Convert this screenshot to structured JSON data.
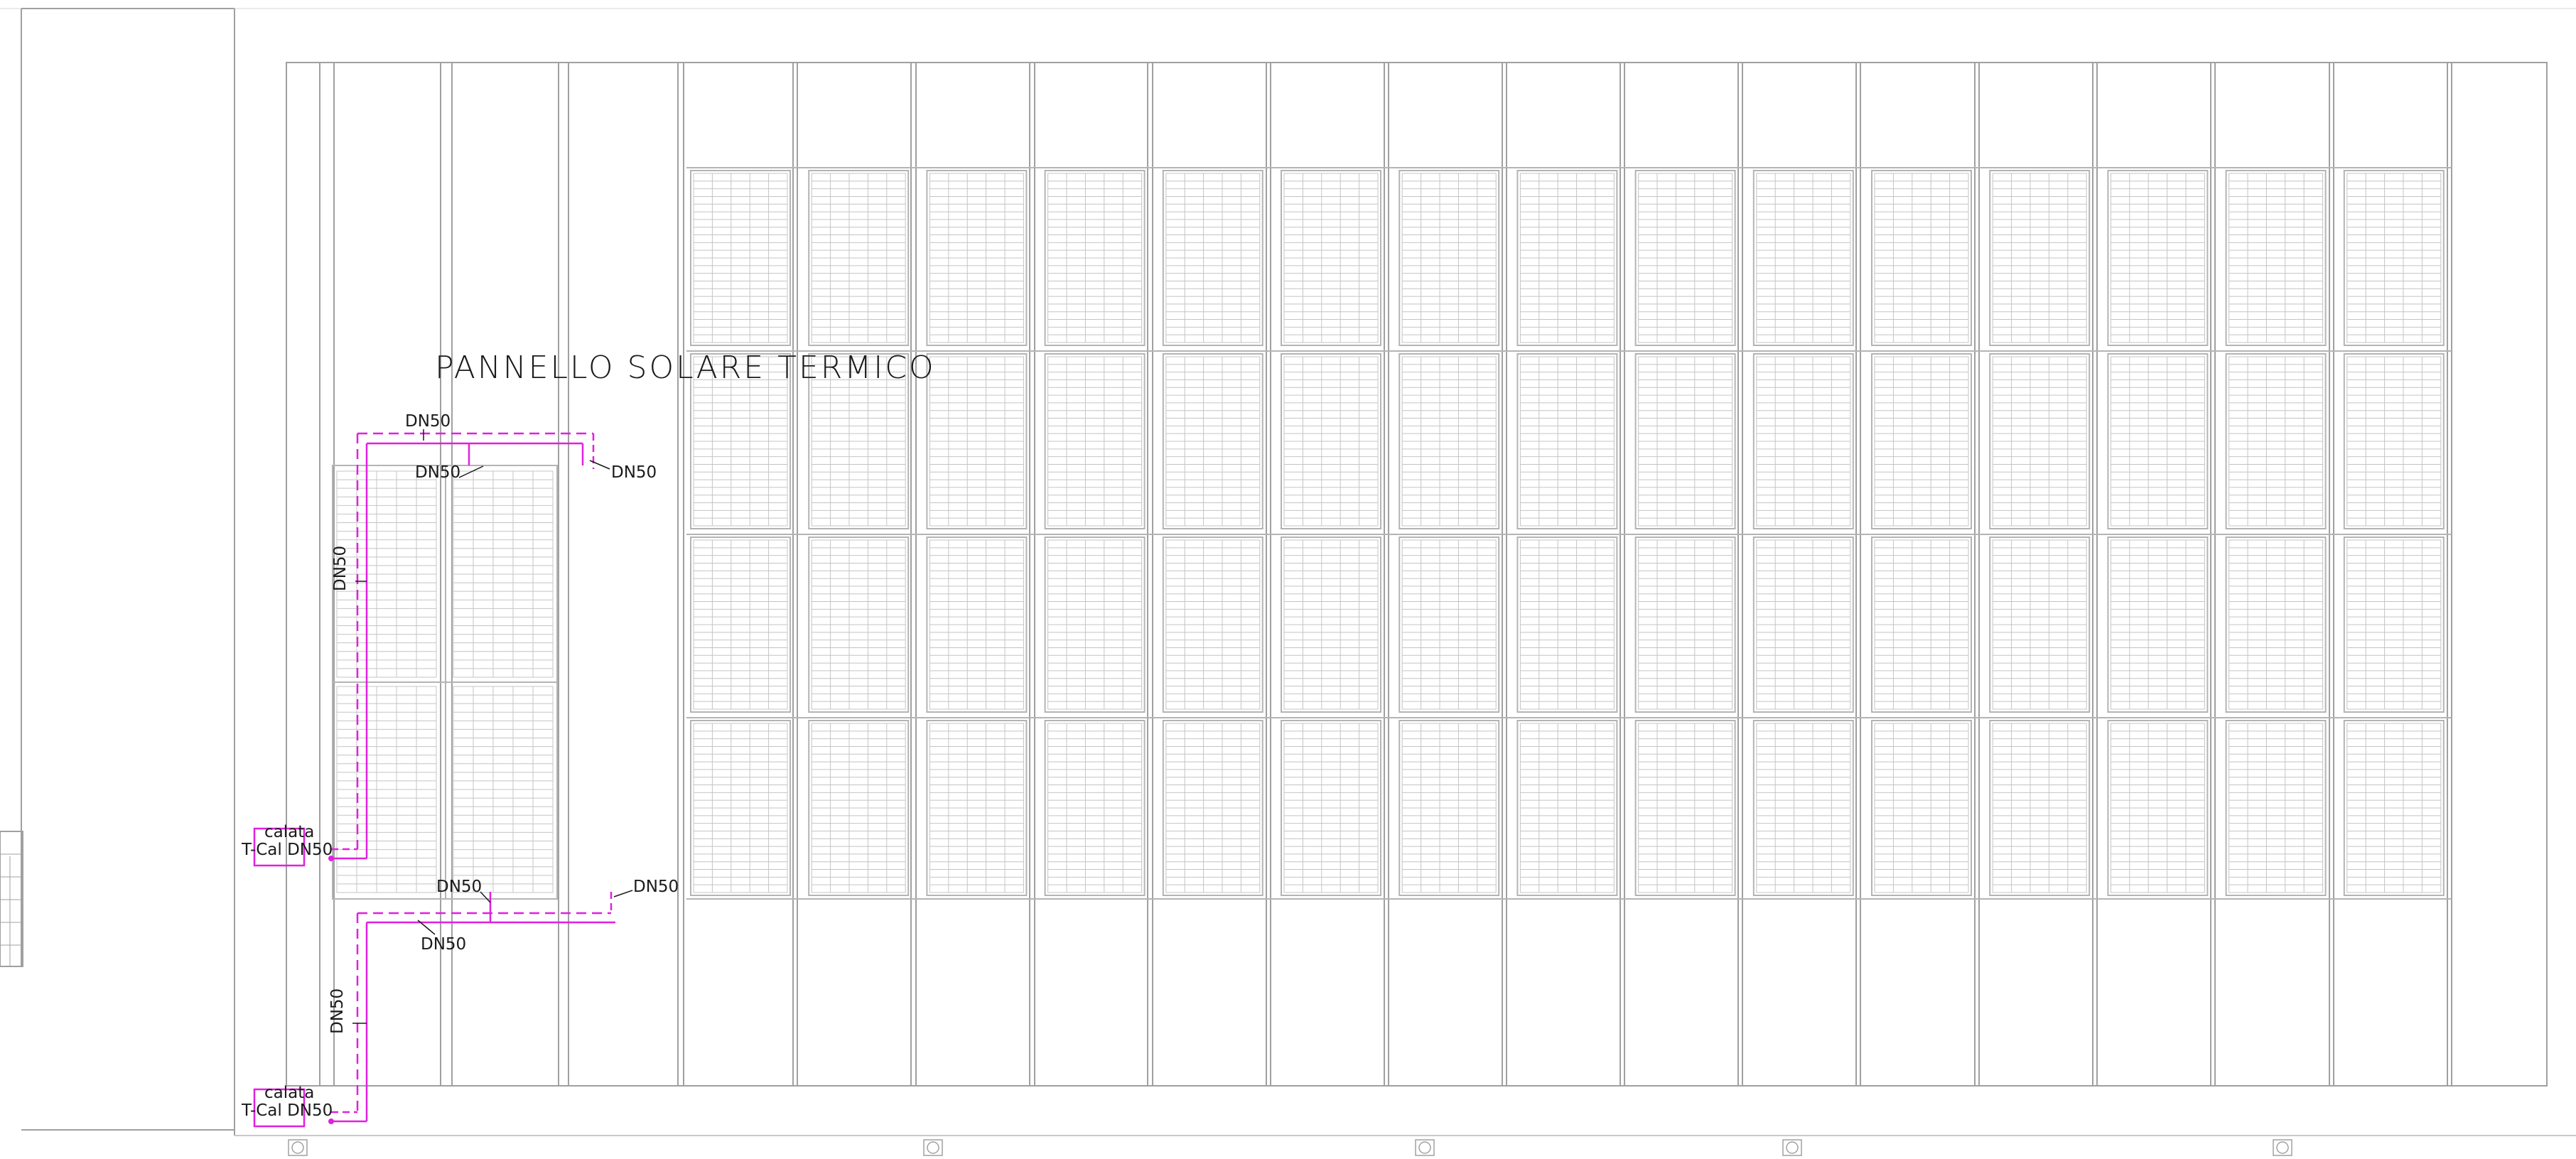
{
  "drawing": {
    "title": "PANNELLO SOLARE TERMICO",
    "colors": {
      "background": "#ffffff",
      "structure": "#a0a0a0",
      "frame": "#b4b4b4",
      "panel_grid": "#c4c4c4",
      "pipe": "#e020e0",
      "text": "#1a1a1a"
    },
    "roof_bays": 19,
    "panel_array": {
      "columns": 15,
      "rows": 4
    },
    "small_array": {
      "columns": 2,
      "rows": 2
    },
    "pipe_labels": [
      {
        "id": "dn50-a",
        "text": "DN50"
      },
      {
        "id": "dn50-b",
        "text": "DN50"
      },
      {
        "id": "dn50-c",
        "text": "DN50"
      },
      {
        "id": "dn50-d",
        "text": "DN50"
      },
      {
        "id": "dn50-e",
        "text": "DN50"
      },
      {
        "id": "dn50-f",
        "text": "DN50"
      },
      {
        "id": "dn50-g",
        "text": "DN50"
      },
      {
        "id": "dn50-h",
        "text": "DN50"
      }
    ],
    "risers": [
      {
        "id": "upper",
        "top": "calata",
        "bottom": "T-Cal DN50"
      },
      {
        "id": "lower",
        "top": "calata",
        "bottom": "T-Cal DN50"
      }
    ],
    "column_markers": 5
  }
}
